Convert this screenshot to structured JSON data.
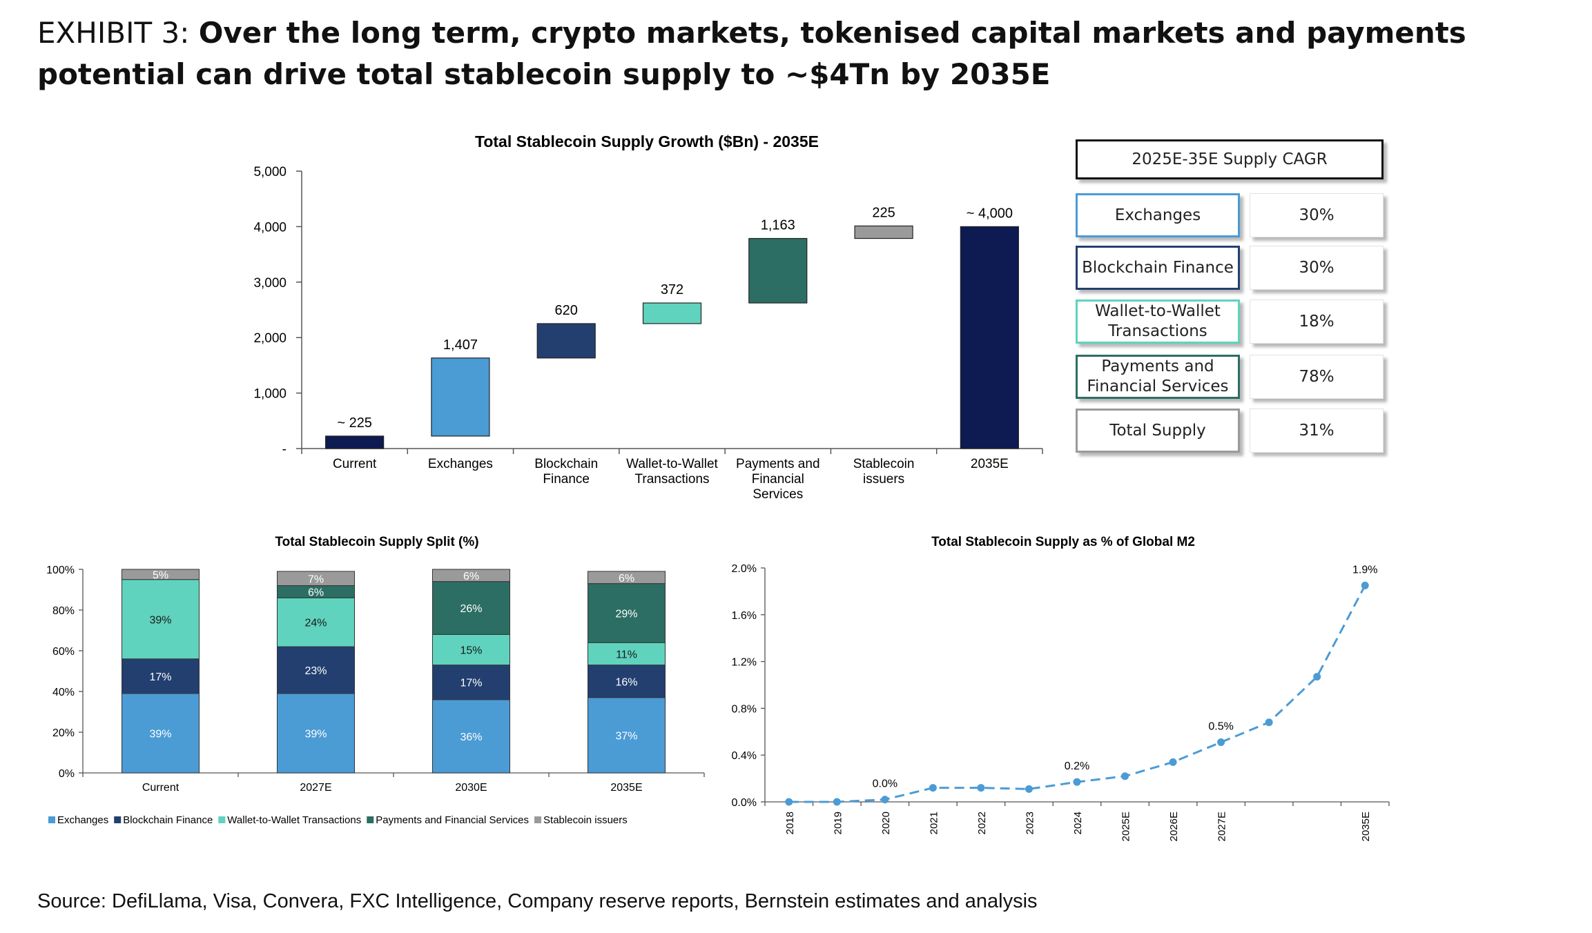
{
  "header": {
    "exhibit_label": "EXHIBIT 3:",
    "headline": "Over the long term, crypto markets, tokenised capital markets and payments potential can drive total stablecoin supply to ~$4Tn by 2035E"
  },
  "source": "Source: DefiLlama, Visa, Convera, FXC Intelligence, Company reserve reports, Bernstein estimates and analysis",
  "colors": {
    "exchanges": "#4B9BD5",
    "blockchain_finance": "#233F70",
    "wallet_to_wallet": "#5FD3BE",
    "payments": "#2C6E63",
    "stablecoin_issuers": "#9A9A9A",
    "current_total": "#0E1B52"
  },
  "cagr_table": {
    "title": "2025E-35E Supply CAGR",
    "rows": [
      {
        "label": "Exchanges",
        "value": "30%",
        "border": "#4B9BD5"
      },
      {
        "label": "Blockchain Finance",
        "value": "30%",
        "border": "#233F70"
      },
      {
        "label": "Wallet-to-Wallet Transactions",
        "value": "18%",
        "border": "#5FD3BE"
      },
      {
        "label": "Payments and Financial Services",
        "value": "78%",
        "border": "#2C6E63"
      },
      {
        "label": "Total Supply",
        "value": "31%",
        "border": "#9A9A9A"
      }
    ]
  },
  "chart_data": [
    {
      "type": "bar",
      "subtype": "waterfall",
      "title": "Total Stablecoin Supply Growth ($Bn) - 2035E",
      "categories": [
        "Current",
        "Exchanges",
        "Blockchain Finance",
        "Wallet-to-Wallet Transactions",
        "Payments and Financial Services",
        "Stablecoin issuers",
        "2035E"
      ],
      "values": [
        225,
        1407,
        620,
        372,
        1163,
        225,
        4000
      ],
      "bar_starts": [
        0,
        225,
        1632,
        2252,
        2624,
        3787,
        0
      ],
      "data_labels": [
        "~ 225",
        "1,407",
        "620",
        "372",
        "1,163",
        "225",
        "~ 4,000"
      ],
      "ylim": [
        0,
        5000
      ],
      "y_ticks": [
        0,
        1000,
        2000,
        3000,
        4000,
        5000
      ],
      "y_tick_labels": [
        "-",
        "1,000",
        "2,000",
        "3,000",
        "4,000",
        "5,000"
      ],
      "grid": false
    },
    {
      "type": "bar",
      "subtype": "stacked-100",
      "title": "Total Stablecoin Supply Split (%)",
      "categories": [
        "Current",
        "2027E",
        "2030E",
        "2035E"
      ],
      "series": [
        {
          "name": "Exchanges",
          "values": [
            39,
            39,
            36,
            37
          ],
          "labels": [
            "39%",
            "39%",
            "36%",
            "37%"
          ]
        },
        {
          "name": "Blockchain Finance",
          "values": [
            17,
            23,
            17,
            16
          ],
          "labels": [
            "17%",
            "23%",
            "17%",
            "16%"
          ]
        },
        {
          "name": "Wallet-to-Wallet Transactions",
          "values": [
            39,
            24,
            15,
            11
          ],
          "labels": [
            "39%",
            "24%",
            "15%",
            "11%"
          ]
        },
        {
          "name": "Payments and Financial Services",
          "values": [
            0,
            6,
            26,
            29
          ],
          "labels": [
            "",
            "6%",
            "26%",
            "29%"
          ]
        },
        {
          "name": "Stablecoin issuers",
          "values": [
            5,
            7,
            6,
            6
          ],
          "labels": [
            "5%",
            "7%",
            "6%",
            "6%"
          ]
        }
      ],
      "ylim": [
        0,
        100
      ],
      "y_tick_labels": [
        "0%",
        "20%",
        "40%",
        "60%",
        "80%",
        "100%"
      ],
      "legend": "bottom",
      "grid": false
    },
    {
      "type": "line",
      "title": "Total Stablecoin Supply as % of Global M2",
      "x": [
        "2018",
        "2019",
        "2020",
        "2021",
        "2022",
        "2023",
        "2024",
        "2025E",
        "2026E",
        "2027E",
        "",
        "",
        "2035E"
      ],
      "values": [
        0.0,
        0.0,
        0.02,
        0.12,
        0.12,
        0.11,
        0.17,
        0.22,
        0.34,
        0.51,
        0.68,
        1.07,
        1.85
      ],
      "point_labels": [
        "",
        "",
        "0.0%",
        "",
        "",
        "",
        "0.2%",
        "",
        "",
        "0.5%",
        "",
        "",
        "1.9%"
      ],
      "ylim": [
        0,
        2.0
      ],
      "y_tick_labels": [
        "0.0%",
        "0.4%",
        "0.8%",
        "1.2%",
        "1.6%",
        "2.0%"
      ],
      "line_style": "dashed",
      "grid": false
    }
  ]
}
